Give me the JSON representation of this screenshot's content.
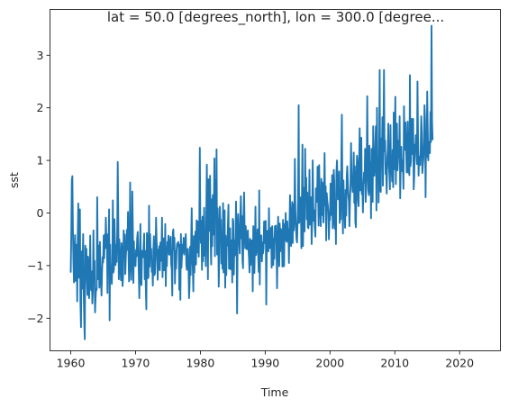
{
  "chart_data": {
    "type": "line",
    "title": "lat = 50.0 [degrees_north], lon = 300.0 [degree...",
    "xlabel": "Time",
    "ylabel": "sst",
    "xlim": [
      1956.8,
      2026.3
    ],
    "ylim": [
      -2.62,
      3.87
    ],
    "xticks": [
      1960,
      1970,
      1980,
      1990,
      2000,
      2010,
      2020
    ],
    "yticks": [
      -2,
      -1,
      0,
      1,
      2,
      3
    ],
    "grid": false,
    "legend": "none",
    "line_color": "#1f77b4",
    "x_step_years": 0.0833333,
    "series": [
      {
        "x_start": 1960.0,
        "values": [
          -1.12,
          -0.42,
          0.62,
          0.7,
          -0.28,
          -0.95,
          -1.32,
          -0.85,
          -0.42,
          -1.29,
          -1.18,
          -0.6,
          -1.68,
          -0.44,
          0.18,
          -1.23,
          -1.01,
          0.07,
          -1.7,
          -2.17,
          -0.73,
          -1.44,
          -0.95,
          -0.4,
          -1.52,
          -2.05,
          -2.4,
          -0.62,
          -1.08,
          -0.68,
          -1.31,
          -1.56,
          -0.83,
          -1.07,
          -1.62,
          -1.3,
          -0.43,
          -1.21,
          -1.47,
          -1.11,
          -1.72,
          -1.49,
          -0.33,
          -1.33,
          -0.91,
          -1.89,
          -1.61,
          -1.44,
          -1.46,
          0.3,
          -0.85,
          -1.26,
          -0.62,
          -1.42,
          -0.55,
          -1.03,
          -1.27,
          -1.57,
          -1.11,
          -0.84,
          -0.94,
          -0.43,
          -0.86,
          -0.41,
          -0.67,
          -0.09,
          -0.52,
          -0.4,
          -1.52,
          -0.43,
          -0.75,
          0.07,
          -2.04,
          -0.6,
          -1.24,
          -1.07,
          -1.35,
          -0.96,
          0.24,
          -1.13,
          -1.07,
          -0.12,
          -0.62,
          -0.99,
          -0.61,
          -0.93,
          -0.41,
          0.97,
          -0.04,
          -1.26,
          -0.5,
          -0.81,
          -1.07,
          -1.28,
          -0.57,
          -0.71,
          -1.39,
          -1.18,
          -0.33,
          -0.67,
          -0.41,
          -1.16,
          -0.83,
          -0.66,
          -0.32,
          -0.7,
          0.02,
          -0.81,
          -1.3,
          -0.66,
          0.58,
          -0.93,
          -1.27,
          -0.89,
          0.41,
          -0.3,
          -1.33,
          -0.54,
          -0.96,
          -0.97,
          -1.01,
          -0.7,
          -0.82,
          -0.48,
          -0.36,
          -0.75,
          -1.14,
          -1.62,
          -0.84,
          -0.21,
          -1.32,
          -1.37,
          -0.72,
          -0.76,
          -0.84,
          -0.61,
          -0.39,
          -1.26,
          -0.72,
          -1.43,
          -1.83,
          -0.38,
          -0.51,
          -1.24,
          -1.21,
          0.14,
          -1.02,
          -0.4,
          -0.81,
          -0.68,
          -1.12,
          -0.96,
          -1.38,
          -0.71,
          -0.44,
          -1.18,
          -1.14,
          -0.8,
          -0.09,
          -0.54,
          -0.72,
          -1.27,
          -0.7,
          -1.06,
          -0.63,
          -1.09,
          -0.56,
          -0.91,
          -0.74,
          -0.09,
          -1.22,
          -0.67,
          -0.48,
          -1.09,
          -0.9,
          -0.21,
          -1.39,
          -0.65,
          -1.01,
          -0.55,
          -0.71,
          -0.43,
          -0.79,
          -0.79,
          -0.54,
          -0.45,
          -0.97,
          -1.07,
          -1.57,
          -0.37,
          -0.31,
          -0.7,
          -0.47,
          -1.34,
          -0.73,
          -1.06,
          -0.69,
          -0.58,
          -0.61,
          -0.55,
          -0.66,
          -1.46,
          -0.6,
          -1.65,
          -0.4,
          -1.04,
          -0.79,
          -0.6,
          -0.75,
          -0.47,
          -0.79,
          -0.54,
          -0.56,
          -0.4,
          -0.98,
          -1.08,
          -0.74,
          -0.68,
          -0.97,
          -1.62,
          -1.38,
          -0.64,
          -1.18,
          -0.56,
          0.09,
          -0.81,
          -1.06,
          -1.49,
          -0.44,
          -1.13,
          -0.49,
          -0.35,
          -0.98,
          -0.14,
          -0.75,
          -0.16,
          -0.31,
          -0.83,
          -0.27,
          1.24,
          -0.25,
          -0.57,
          -0.15,
          -1.08,
          -0.07,
          -0.92,
          -0.39,
          0.1,
          -0.81,
          -0.35,
          -1.01,
          0.01,
          0.92,
          -0.17,
          -1.26,
          0.64,
          -0.26,
          -0.34,
          0.71,
          -0.5,
          -0.98,
          0.26,
          -0.63,
          0.34,
          -0.41,
          0.09,
          1.04,
          -0.82,
          0.63,
          -0.05,
          1.21,
          -0.79,
          0.09,
          -0.29,
          -1.4,
          -0.88,
          0.12,
          -0.16,
          -0.13,
          -0.96,
          -0.52,
          -1.06,
          0.19,
          -1.13,
          -0.82,
          0.05,
          -1.42,
          -0.43,
          -1.18,
          -0.49,
          -0.62,
          -0.24,
          0.16,
          -1.06,
          -0.57,
          -0.29,
          -1.07,
          -1.06,
          -0.52,
          -1.32,
          -0.11,
          -0.16,
          -1.17,
          -0.52,
          -0.81,
          -0.6,
          0.22,
          -0.38,
          -1.91,
          -0.56,
          -0.02,
          -0.36,
          -0.56,
          -0.77,
          -0.09,
          0.32,
          -0.48,
          -0.06,
          -0.89,
          -1.05,
          -0.04,
          0.39,
          -0.38,
          -0.67,
          -0.25,
          -0.52,
          -0.69,
          -0.44,
          -0.33,
          -0.67,
          -0.84,
          -1.13,
          -0.49,
          -0.99,
          -0.61,
          -0.52,
          -0.58,
          -1.49,
          -0.25,
          -0.38,
          -1.14,
          -0.63,
          0.12,
          -0.8,
          -0.72,
          -0.53,
          -0.31,
          -0.79,
          -1.12,
          0.43,
          -1.36,
          -0.42,
          -0.51,
          -0.43,
          -0.92,
          -0.56,
          -0.77,
          -0.67,
          -0.16,
          -0.2,
          -0.57,
          -0.15,
          -1.74,
          -0.54,
          -0.34,
          -0.36,
          -0.73,
          0.09,
          -0.67,
          -0.66,
          -0.49,
          -0.28,
          -1.04,
          -0.25,
          -0.51,
          -0.99,
          -0.49,
          -0.87,
          -0.25,
          -0.52,
          -0.24,
          -0.62,
          -1.43,
          -0.6,
          -0.07,
          -0.56,
          -1.01,
          -0.2,
          -0.73,
          -0.3,
          -0.33,
          -0.49,
          -1.02,
          -0.13,
          -0.57,
          -1.01,
          -0.21,
          -0.52,
          0.0,
          -0.49,
          -0.55,
          -0.16,
          -0.51,
          -0.31,
          -0.95,
          -0.27,
          0.34,
          -0.52,
          -0.63,
          -0.04,
          0.21,
          -0.57,
          0.17,
          -0.33,
          -0.11,
          1.03,
          0.04,
          -0.29,
          -0.49,
          -0.56,
          -0.17,
          0.28,
          2.05,
          -0.19,
          -0.06,
          0.12,
          0.3,
          -0.67,
          0.26,
          1.3,
          -0.63,
          0.08,
          0.48,
          -0.35,
          1.22,
          0.28,
          0.67,
          -0.12,
          0.39,
          -0.27,
          -0.29,
          0.07,
          0.82,
          -0.22,
          0.04,
          0.3,
          -0.59,
          -0.14,
          1.0,
          0.19,
          -0.15,
          0.05,
          -0.29,
          -0.45,
          0.47,
          0.46,
          0.21,
          0.88,
          0.36,
          -0.24,
          0.91,
          0.15,
          0.04,
          -0.25,
          0.65,
          -0.04,
          0.58,
          0.12,
          -0.18,
          0.31,
          1.14,
          0.15,
          0.51,
          -0.52,
          0.38,
          0.23,
          0.15,
          0.02,
          -0.5,
          -0.09,
          -0.13,
          0.56,
          -0.04,
          0.11,
          0.72,
          -0.29,
          -0.18,
          0.82,
          0.59,
          -0.3,
          0.16,
          -0.59,
          0.8,
          1.0,
          0.58,
          0.26,
          0.38,
          0.79,
          -0.19,
          0.16,
          -0.12,
          0.96,
          1.87,
          0.38,
          -0.39,
          0.62,
          0.17,
          0.08,
          -0.28,
          0.44,
          -0.05,
          0.71,
          0.89,
          0.59,
          0.34,
          0.23,
          -0.25,
          0.22,
          0.56,
          1.33,
          0.64,
          0.56,
          0.4,
          0.66,
          1.15,
          0.19,
          0.89,
          -0.18,
          -0.27,
          0.65,
          1.09,
          0.96,
          0.23,
          0.13,
          0.98,
          1.61,
          0.43,
          0.69,
          1.43,
          0.36,
          0.48,
          0.01,
          0.57,
          0.77,
          0.58,
          1.22,
          0.21,
          0.46,
          0.91,
          2.22,
          0.87,
          0.44,
          0.34,
          1.28,
          0.4,
          0.97,
          -0.1,
          1.22,
          0.54,
          0.21,
          1.65,
          0.8,
          0.71,
          0.92,
          1.34,
          1.65,
          0.05,
          2.0,
          0.78,
          1.06,
          0.2,
          1.03,
          2.72,
          0.44,
          0.4,
          1.42,
          1.0,
          1.82,
          0.52,
          1.44,
          2.72,
          1.17,
          1.38,
          0.74,
          0.87,
          0.37,
          1.04,
          1.21,
          1.7,
          0.9,
          0.74,
          0.45,
          1.67,
          0.75,
          0.91,
          0.6,
          1.2,
          0.49,
          1.91,
          0.83,
          1.44,
          2.21,
          0.55,
          1.65,
          1.7,
          0.81,
          1.0,
          1.38,
          1.06,
          1.84,
          0.28,
          0.96,
          1.26,
          0.92,
          0.79,
          1.0,
          0.46,
          2.03,
          1.2,
          1.71,
          1.72,
          1.2,
          0.77,
          1.08,
          1.74,
          0.77,
          1.27,
          0.72,
          2.62,
          0.89,
          0.99,
          1.79,
          1.23,
          1.12,
          1.79,
          0.45,
          0.71,
          1.3,
          1.2,
          1.48,
          1.14,
          0.93,
          2.5,
          1.5,
          0.71,
          1.07,
          1.07,
          0.91,
          1.25,
          1.84,
          1.53,
          0.76,
          0.92,
          1.05,
          1.4,
          2.05,
          1.78,
          0.3,
          1.55,
          1.06,
          2.31,
          1.6,
          1.0,
          1.35,
          1.2,
          1.14,
          1.92,
          1.35,
          3.56,
          1.75,
          1.4
        ]
      }
    ]
  }
}
